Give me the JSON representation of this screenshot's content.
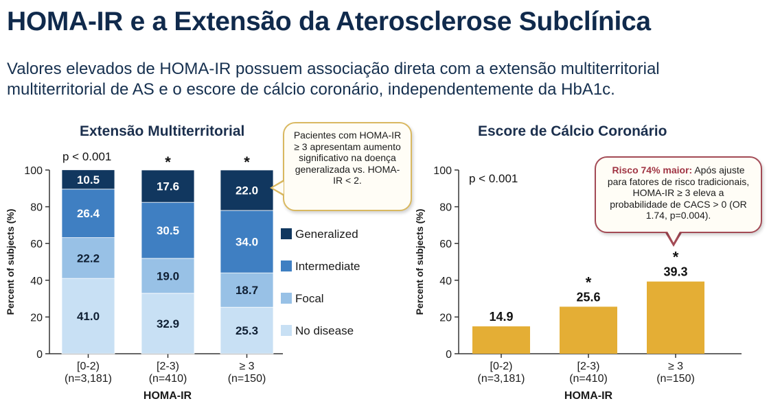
{
  "header": {
    "title": "HOMA-IR e a Extensão da Aterosclerose Subclínica",
    "subtitle_line1": "Valores elevados de HOMA-IR possuem associação direta com a extensão multiterritorial",
    "subtitle_line2": "multiterritorial de AS e o escore de cálcio coronário, independentemente da HbA1c."
  },
  "callouts": {
    "extent": "Pacientes com HOMA-IR ≥ 3 apresentam aumento significativo na doença generalizada vs. HOMA-IR < 2.",
    "cacs_highlight": "Risco 74% maior:",
    "cacs_rest": " Após ajuste para fatores de risco tradicionais, HOMA-IR ≥ 3 eleva a probabilidade de CACS > 0 (OR 1.74, p=0.004)."
  },
  "chart_data": [
    {
      "type": "bar",
      "stacked": true,
      "title": "Extensão Multiterritorial",
      "xlabel": "HOMA-IR",
      "ylabel": "Percent of subjects (%)",
      "ylim": [
        0,
        100
      ],
      "yticks": [
        0,
        20,
        40,
        60,
        80,
        100
      ],
      "annotation": "p < 0.001",
      "categories": [
        {
          "label": "[0-2)",
          "n": "(n=3,181)"
        },
        {
          "label": "[2-3)",
          "n": "(n=410)"
        },
        {
          "label": "≥ 3",
          "n": "(n=150)"
        }
      ],
      "significance": [
        "",
        "*",
        "*"
      ],
      "series": [
        {
          "name": "No disease",
          "color": "#c8e0f4",
          "label_color": "#0f1f33",
          "values": [
            41.0,
            32.9,
            25.3
          ]
        },
        {
          "name": "Focal",
          "color": "#98c1e6",
          "label_color": "#0f1f33",
          "values": [
            22.2,
            19.0,
            18.7
          ]
        },
        {
          "name": "Intermediate",
          "color": "#3f7fc2",
          "label_color": "#ffffff",
          "values": [
            26.4,
            30.5,
            34.0
          ]
        },
        {
          "name": "Generalized",
          "color": "#11375f",
          "label_color": "#ffffff",
          "values": [
            10.5,
            17.6,
            22.0
          ]
        }
      ],
      "legend_order": [
        "Generalized",
        "Intermediate",
        "Focal",
        "No disease"
      ]
    },
    {
      "type": "bar",
      "title": "Escore de Cálcio Coronário",
      "xlabel": "HOMA-IR",
      "ylabel": "Percent of subjects (%)",
      "ylim": [
        0,
        100
      ],
      "yticks": [
        0,
        20,
        40,
        60,
        80,
        100
      ],
      "annotation": "p < 0.001",
      "color": "#e4ae35",
      "categories": [
        {
          "label": "[0-2)",
          "n": "(n=3,181)"
        },
        {
          "label": "[2-3)",
          "n": "(n=410)"
        },
        {
          "label": "≥ 3",
          "n": "(n=150)"
        }
      ],
      "significance": [
        "",
        "*",
        "*"
      ],
      "values": [
        14.9,
        25.6,
        39.3
      ]
    }
  ]
}
